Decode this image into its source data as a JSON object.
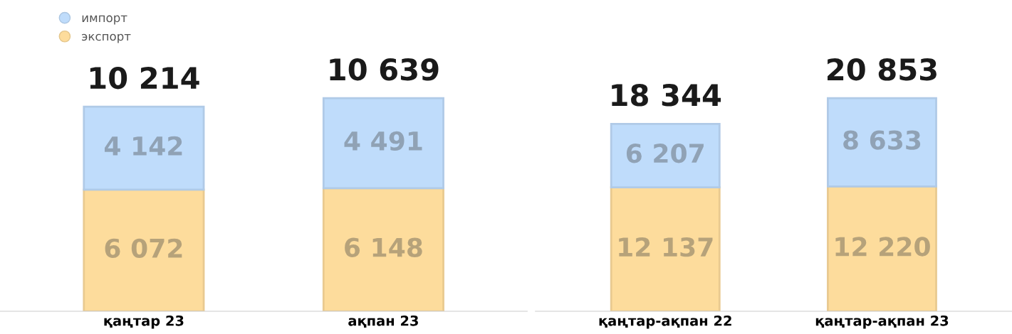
{
  "chart_data": [
    {
      "type": "bar",
      "stacked": true,
      "categories": [
        "қаңтар 23",
        "ақпан 23"
      ],
      "legend": "top left",
      "totals": [
        "10 214",
        "10 639"
      ],
      "series": [
        {
          "name": "экспорт",
          "color": "#fddc9c",
          "values": [
            6072,
            6148
          ],
          "value_labels": [
            "6 072",
            "6 148"
          ]
        },
        {
          "name": "импорт",
          "color": "#bfdcfb",
          "values": [
            4142,
            4491
          ],
          "value_labels": [
            "4 142",
            "4 491"
          ]
        }
      ]
    },
    {
      "type": "bar",
      "stacked": true,
      "categories": [
        "қаңтар-ақпан 22",
        "қаңтар-ақпан 23"
      ],
      "totals": [
        "18 344",
        "20 853"
      ],
      "series": [
        {
          "color": "#fddc9c",
          "values": [
            12137,
            12220
          ],
          "value_labels": [
            "12 137",
            "12 220"
          ]
        },
        {
          "color": "#bfdcfb",
          "values": [
            6207,
            8633
          ],
          "value_labels": [
            "6 207",
            "8 633"
          ]
        }
      ]
    }
  ]
}
